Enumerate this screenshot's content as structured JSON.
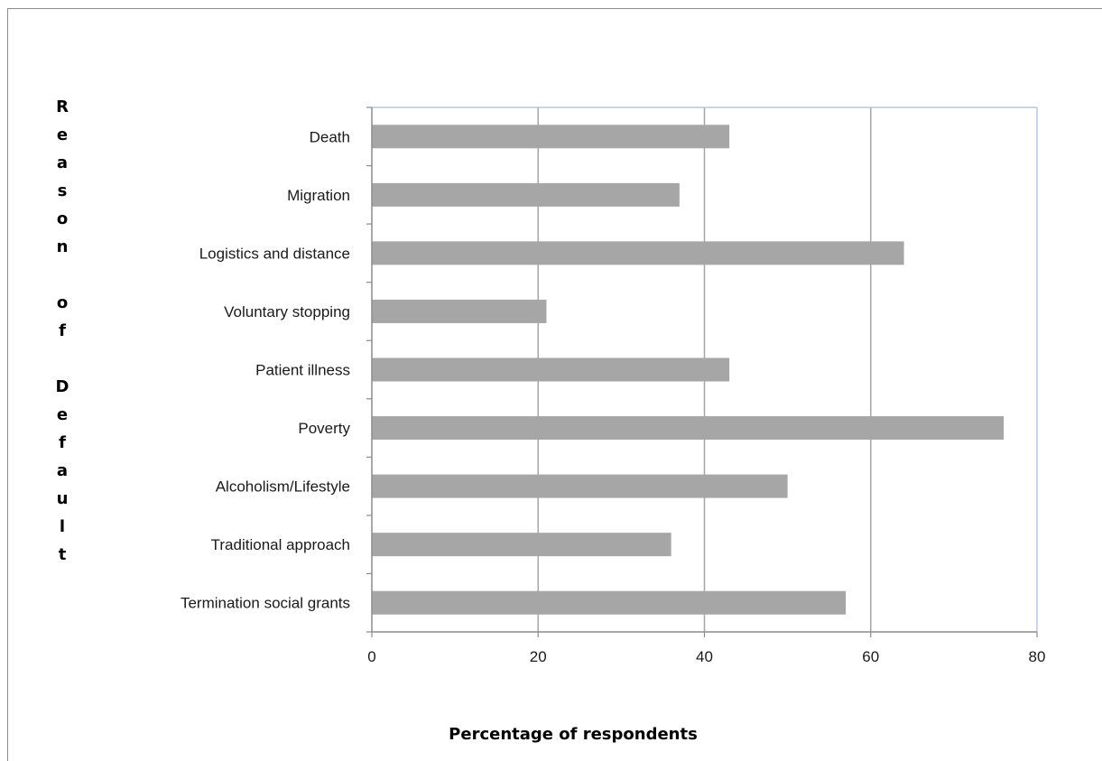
{
  "chart_data": {
    "type": "bar",
    "orientation": "horizontal",
    "title": "",
    "xlabel": "Percentage of respondents",
    "ylabel": "Reason of Default",
    "categories": [
      "Death",
      "Migration",
      "Logistics and distance",
      "Voluntary stopping",
      "Patient illness",
      "Poverty",
      "Alcoholism/Lifestyle",
      "Traditional approach",
      "Termination social grants"
    ],
    "values": [
      43,
      37,
      64,
      21,
      43,
      76,
      50,
      36,
      57
    ],
    "xlim": [
      0,
      80
    ],
    "xticks": [
      0,
      20,
      40,
      60,
      80
    ],
    "grid": "vertical",
    "legend": "none",
    "colors": {
      "bar": "#a6a6a6",
      "gridline": "#a6a6a6",
      "plot_border": "#b4c7e7"
    }
  }
}
